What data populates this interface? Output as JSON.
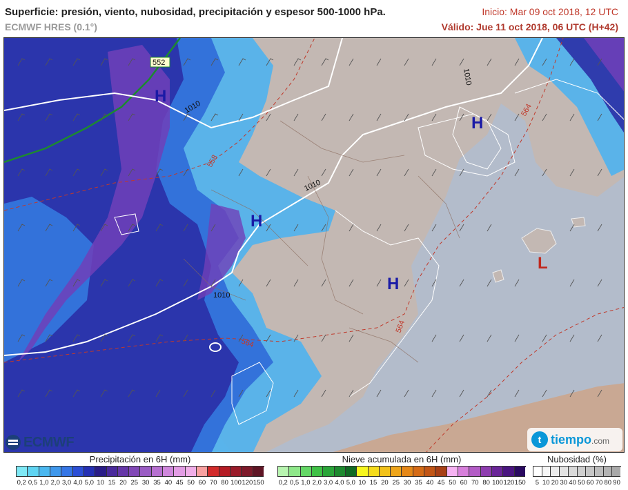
{
  "header": {
    "title": "Superficie: presión, viento, nubosidad, precipitación y espesor 500-1000 hPa.",
    "model": "ECMWF HRES (0.1°)",
    "init": "Inicio: Mar 09 oct 2018, 12 UTC",
    "valid": "Válido: Jue 11 oct 2018, 06 UTC (H+42)"
  },
  "map": {
    "pressure_centers": [
      {
        "type": "H",
        "color": "#1a1aa6"
      },
      {
        "type": "H",
        "color": "#1a1aa6"
      },
      {
        "type": "H",
        "color": "#1a1aa6"
      },
      {
        "type": "H",
        "color": "#1a1aa6"
      },
      {
        "type": "L",
        "color": "#c0281d"
      }
    ],
    "isobar_labels": [
      "1010",
      "1010",
      "1010",
      "1010"
    ],
    "thickness_labels": [
      "552",
      "558",
      "564",
      "564",
      "564"
    ]
  },
  "logos": {
    "ecmwf": "ECMWF",
    "tiempo": "tiempo",
    "tiempo_suffix": ".com"
  },
  "legend": {
    "precip": {
      "title": "Precipitación en 6H (mm)",
      "ticks": [
        "0,2",
        "0,5",
        "1,0",
        "2,0",
        "3,0",
        "4,0",
        "5,0",
        "10",
        "15",
        "20",
        "25",
        "30",
        "35",
        "40",
        "45",
        "50",
        "60",
        "70",
        "80",
        "100",
        "120",
        "150"
      ],
      "colors": [
        "#7fe9f6",
        "#5fd4f2",
        "#4bb8f0",
        "#3f98ec",
        "#3576e6",
        "#2c4fd6",
        "#2530b4",
        "#2a1d88",
        "#4a2a9c",
        "#6637a8",
        "#8148b6",
        "#9a5cc4",
        "#b670d0",
        "#cf87dc",
        "#e29ce4",
        "#f0aee8",
        "#f9a1a1",
        "#d22b2b",
        "#b51c25",
        "#9a1b2a",
        "#7e1a2a",
        "#5f1525"
      ]
    },
    "snow": {
      "title": "Nieve acumulada en 6H (mm)",
      "ticks": [
        "0,2",
        "0,5",
        "1,0",
        "2,0",
        "3,0",
        "4,0",
        "5,0",
        "10",
        "15",
        "20",
        "25",
        "30",
        "35",
        "40",
        "45",
        "50",
        "60",
        "70",
        "80",
        "100",
        "120",
        "150"
      ],
      "colors": [
        "#b8f5b0",
        "#8fe88a",
        "#64d766",
        "#3fc146",
        "#2aa539",
        "#1d8a2f",
        "#106a24",
        "#f7f71e",
        "#f5dc1b",
        "#f2c21a",
        "#eea51a",
        "#e58818",
        "#d56c17",
        "#c25616",
        "#a84016",
        "#f6b2f2",
        "#d77fdb",
        "#b35cc6",
        "#8e3daf",
        "#6a2598",
        "#4a1580",
        "#2a0a60"
      ]
    },
    "cloud": {
      "title": "Nubosidad (%)",
      "ticks": [
        "5",
        "10",
        "20",
        "30",
        "40",
        "50",
        "60",
        "70",
        "80",
        "90"
      ],
      "colors": [
        "#ffffff",
        "#f6f6f6",
        "#ececec",
        "#e3e3e3",
        "#d9d9d9",
        "#cfcfcf",
        "#c6c6c6",
        "#bcbcbc",
        "#b3b3b3",
        "#a9a9a9"
      ]
    }
  }
}
